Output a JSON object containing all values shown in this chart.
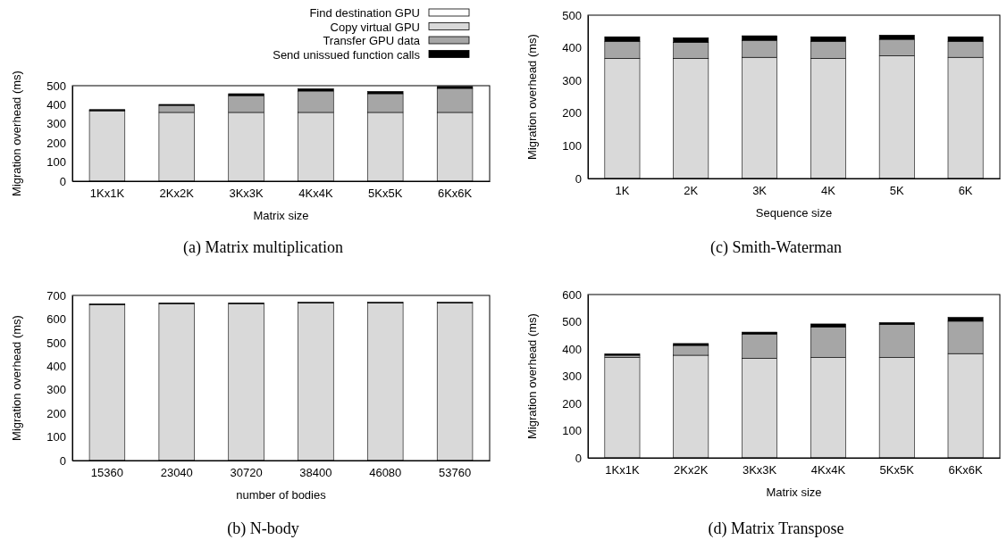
{
  "chart_data": [
    {
      "type": "bar",
      "title": "(a) Matrix multiplication",
      "xlabel": "Matrix size",
      "ylabel": "Migration overhead (ms)",
      "categories": [
        "1Kx1K",
        "2Kx2K",
        "3Kx3K",
        "4Kx4K",
        "5Kx5K",
        "6Kx6K"
      ],
      "stacked": true,
      "ylim": [
        0,
        500
      ],
      "yticks": [
        0,
        100,
        200,
        300,
        400,
        500
      ],
      "legend": "top right",
      "series": [
        {
          "name": "Find destination GPU",
          "color": "#ffffff",
          "values": [
            null,
            null,
            null,
            null,
            null,
            null
          ]
        },
        {
          "name": "Copy virtual GPU",
          "color": "#d9d9d9",
          "values": [
            368,
            360,
            360,
            360,
            360,
            360
          ]
        },
        {
          "name": "Transfer GPU data",
          "color": "#a6a6a6",
          "values": [
            4,
            37,
            88,
            112,
            98,
            126
          ]
        },
        {
          "name": "Send unissued function calls",
          "color": "#000000",
          "values": [
            3,
            5,
            10,
            12,
            12,
            10
          ]
        }
      ]
    },
    {
      "type": "bar",
      "title": "(b) N-body",
      "xlabel": "number of bodies",
      "ylabel": "Migration overhead (ms)",
      "categories": [
        "15360",
        "23040",
        "30720",
        "38400",
        "46080",
        "53760"
      ],
      "stacked": true,
      "ylim": [
        0,
        700
      ],
      "yticks": [
        0,
        100,
        200,
        300,
        400,
        500,
        600,
        700
      ],
      "series": [
        {
          "color": "#d9d9d9",
          "values": [
            661,
            665,
            665,
            668,
            668,
            668
          ]
        },
        {
          "color": "#000000",
          "values": [
            3,
            3,
            3,
            3,
            3,
            3
          ]
        }
      ]
    },
    {
      "type": "bar",
      "title": "(c) Smith-Waterman",
      "xlabel": "Sequence size",
      "ylabel": "Migration overhead (ms)",
      "categories": [
        "1K",
        "2K",
        "3K",
        "4K",
        "5K",
        "6K"
      ],
      "stacked": true,
      "ylim": [
        0,
        500
      ],
      "yticks": [
        0,
        100,
        200,
        300,
        400,
        500
      ],
      "series": [
        {
          "color": "#d9d9d9",
          "values": [
            368,
            368,
            371,
            368,
            376,
            371
          ]
        },
        {
          "color": "#a6a6a6",
          "values": [
            52,
            49,
            52,
            52,
            50,
            49
          ]
        },
        {
          "color": "#000000",
          "values": [
            14,
            14,
            14,
            14,
            13,
            14
          ]
        }
      ]
    },
    {
      "type": "bar",
      "title": "(d) Matrix Transpose",
      "xlabel": "Matrix size",
      "ylabel": "Migration overhead (ms)",
      "categories": [
        "1Kx1K",
        "2Kx2K",
        "3Kx3K",
        "4Kx4K",
        "5Kx5K",
        "6Kx6K"
      ],
      "stacked": true,
      "ylim": [
        0,
        600
      ],
      "yticks": [
        0,
        100,
        200,
        300,
        400,
        500,
        600
      ],
      "series": [
        {
          "color": "#d9d9d9",
          "values": [
            369,
            377,
            366,
            369,
            369,
            383
          ]
        },
        {
          "color": "#a6a6a6",
          "values": [
            8,
            36,
            89,
            112,
            121,
            119
          ]
        },
        {
          "color": "#000000",
          "values": [
            5,
            7,
            7,
            11,
            7,
            14
          ]
        }
      ]
    }
  ]
}
